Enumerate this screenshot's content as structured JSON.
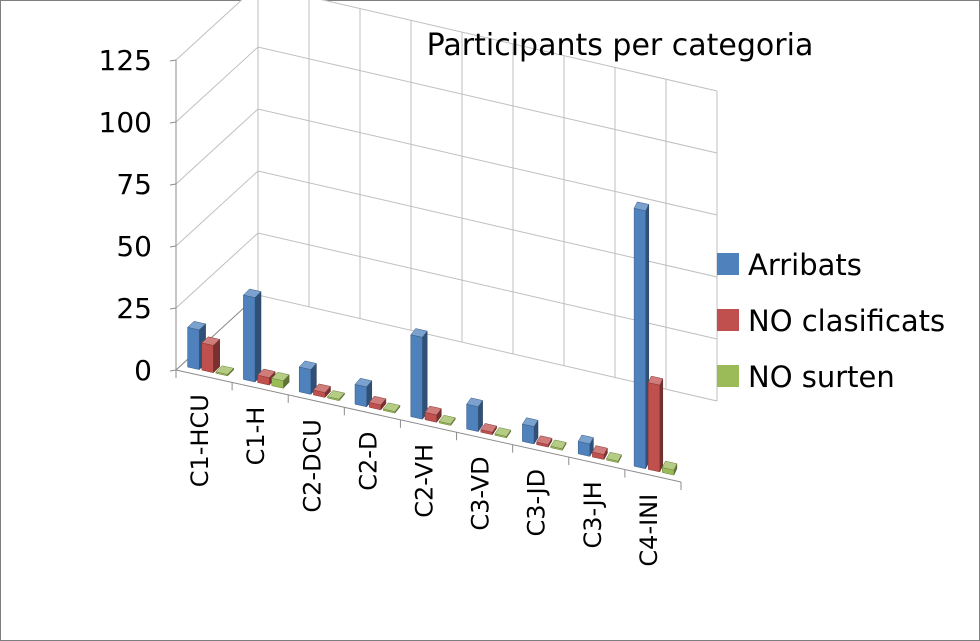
{
  "chart_data": {
    "type": "bar",
    "title": "Participants per categoria",
    "categories": [
      "C1-HCU",
      "C1-H",
      "C2-DCU",
      "C2-D",
      "C2-VH",
      "C3-VD",
      "C3-JD",
      "C3-JH",
      "C4-INI"
    ],
    "series": [
      {
        "name": "Arribats",
        "color": "#4f81bd",
        "values": [
          16,
          34,
          10,
          8,
          33,
          10,
          7,
          5,
          104
        ]
      },
      {
        "name": "NO clasificats",
        "color": "#c0504d",
        "values": [
          11,
          3,
          2,
          2,
          3,
          1,
          1,
          2,
          35
        ]
      },
      {
        "name": "NO surten",
        "color": "#9bbb59",
        "values": [
          0,
          3,
          0,
          0,
          0,
          0,
          0,
          0,
          2
        ]
      }
    ],
    "ylim": [
      0,
      125
    ],
    "yticks": [
      0,
      25,
      50,
      75,
      100,
      125
    ],
    "grid": true,
    "legend_position": "right",
    "view": "3d-perspective"
  }
}
